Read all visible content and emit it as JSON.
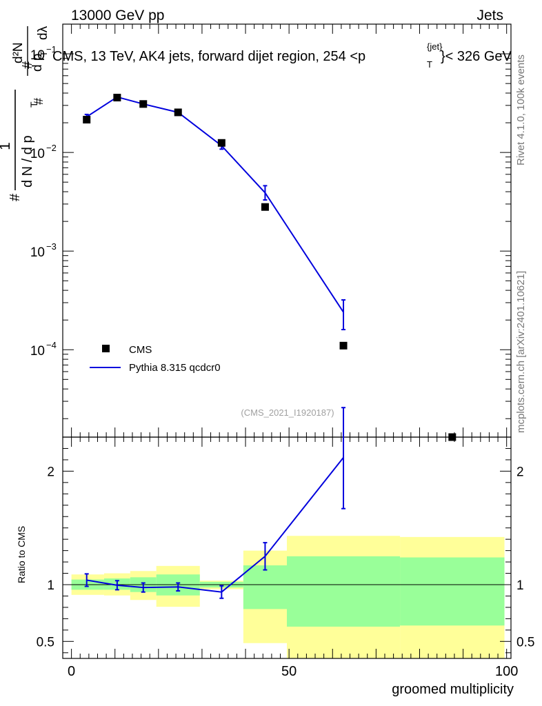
{
  "header": {
    "left": "13000 GeV pp",
    "right": "Jets",
    "title_prefix": "CMS, 13 TeV, AK4 jets, forward dijet region, 254 <p",
    "title_sup": "{jet}",
    "title_sub": "T",
    "title_suffix": "}< 326 GeV"
  },
  "side": {
    "rivet": "Rivet 4.1.0,  100k events",
    "mcplots": "mcplots.cern.ch [arXiv:2401.10621]"
  },
  "watermark": "(CMS_2021_I1920187)",
  "ylabel_top": {
    "num": "1",
    "den": "d N / d p",
    "den_sub": "T",
    "hash1": "#",
    "frac2_num": "d²N",
    "frac2_den": "d p",
    "frac2_den_sub": "T",
    "dlambda": "dλ",
    "hash2": "#",
    "hash3": "#"
  },
  "ylabel_bottom": "Ratio to CMS",
  "xlabel": "groomed multiplicity",
  "legend": [
    {
      "label": "CMS",
      "color": "#000000",
      "kind": "marker"
    },
    {
      "label": "Pythia 8.315 qcdcr0",
      "color": "#0000dd",
      "kind": "line"
    }
  ],
  "colors": {
    "mc": "#0000dd",
    "data": "#000000",
    "band_inner": "#99ff99",
    "band_outer": "#ffff99"
  },
  "chart_data": {
    "type": "line",
    "x_range": [
      -2,
      101
    ],
    "main": {
      "yscale": "log",
      "ylim": [
        1.3e-05,
        0.2
      ],
      "ytick_labels": [
        {
          "base": "10",
          "exp": "−1",
          "value": 0.1
        },
        {
          "base": "10",
          "exp": "−2",
          "value": 0.01
        },
        {
          "base": "10",
          "exp": "−3",
          "value": 0.001
        },
        {
          "base": "10",
          "exp": "−4",
          "value": 0.0001
        }
      ],
      "cms": [
        {
          "x": 3.5,
          "y": 0.0215
        },
        {
          "x": 10.5,
          "y": 0.036
        },
        {
          "x": 16.5,
          "y": 0.031
        },
        {
          "x": 24.5,
          "y": 0.0255
        },
        {
          "x": 34.5,
          "y": 0.0125
        },
        {
          "x": 44.5,
          "y": 0.0028
        },
        {
          "x": 62.5,
          "y": 0.00011
        },
        {
          "x": 87.5,
          "y": 1.3e-05
        }
      ],
      "pythia": [
        {
          "x": 3.5,
          "y": 0.023,
          "lo": 0.0217,
          "hi": 0.0243
        },
        {
          "x": 10.5,
          "y": 0.0365,
          "lo": 0.035,
          "hi": 0.038
        },
        {
          "x": 16.5,
          "y": 0.031,
          "lo": 0.0297,
          "hi": 0.0323
        },
        {
          "x": 24.5,
          "y": 0.0255,
          "lo": 0.0245,
          "hi": 0.0265
        },
        {
          "x": 34.5,
          "y": 0.0117,
          "lo": 0.0108,
          "hi": 0.0126
        },
        {
          "x": 44.5,
          "y": 0.0039,
          "lo": 0.0033,
          "hi": 0.0046
        },
        {
          "x": 62.5,
          "y": 0.00024,
          "lo": 0.00016,
          "hi": 0.00032
        }
      ]
    },
    "ratio": {
      "ylim": [
        0.35,
        2.3
      ],
      "yticks": [
        {
          "value": 0.5,
          "label": "0.5"
        },
        {
          "value": 1,
          "label": "1"
        },
        {
          "value": 2,
          "label": "2"
        }
      ],
      "xticks": [
        {
          "value": 0,
          "label": "0"
        },
        {
          "value": 50,
          "label": "50"
        },
        {
          "value": 100,
          "label": "100"
        }
      ],
      "bands": [
        {
          "x0": 0,
          "x1": 7.5,
          "g_lo": 0.955,
          "g_hi": 1.045,
          "y_lo": 0.91,
          "y_hi": 1.09
        },
        {
          "x0": 7.5,
          "x1": 13.5,
          "g_lo": 0.955,
          "g_hi": 1.055,
          "y_lo": 0.905,
          "y_hi": 1.1
        },
        {
          "x0": 13.5,
          "x1": 19.5,
          "g_lo": 0.935,
          "g_hi": 1.065,
          "y_lo": 0.865,
          "y_hi": 1.12
        },
        {
          "x0": 19.5,
          "x1": 29.5,
          "g_lo": 0.905,
          "g_hi": 1.09,
          "y_lo": 0.805,
          "y_hi": 1.165
        },
        {
          "x0": 29.5,
          "x1": 39.5,
          "g_lo": 0.975,
          "g_hi": 1.025,
          "y_lo": 0.96,
          "y_hi": 1.035
        },
        {
          "x0": 39.5,
          "x1": 49.5,
          "g_lo": 0.785,
          "g_hi": 1.17,
          "y_lo": 0.485,
          "y_hi": 1.3
        },
        {
          "x0": 49.5,
          "x1": 75.5,
          "g_lo": 0.63,
          "g_hi": 1.25,
          "y_lo": 0.35,
          "y_hi": 1.43
        },
        {
          "x0": 75.5,
          "x1": 99.5,
          "g_lo": 0.64,
          "g_hi": 1.24,
          "y_lo": 0.35,
          "y_hi": 1.42
        }
      ],
      "pythia": [
        {
          "x": 3.5,
          "y": 1.04,
          "lo": 0.985,
          "hi": 1.095
        },
        {
          "x": 10.5,
          "y": 0.995,
          "lo": 0.955,
          "hi": 1.035
        },
        {
          "x": 16.5,
          "y": 0.975,
          "lo": 0.935,
          "hi": 1.015
        },
        {
          "x": 24.5,
          "y": 0.98,
          "lo": 0.945,
          "hi": 1.015
        },
        {
          "x": 34.5,
          "y": 0.935,
          "lo": 0.88,
          "hi": 0.99
        },
        {
          "x": 44.5,
          "y": 1.25,
          "lo": 1.13,
          "hi": 1.37
        },
        {
          "x": 62.5,
          "y": 2.12,
          "lo": 1.67,
          "hi": 2.56
        }
      ]
    }
  }
}
